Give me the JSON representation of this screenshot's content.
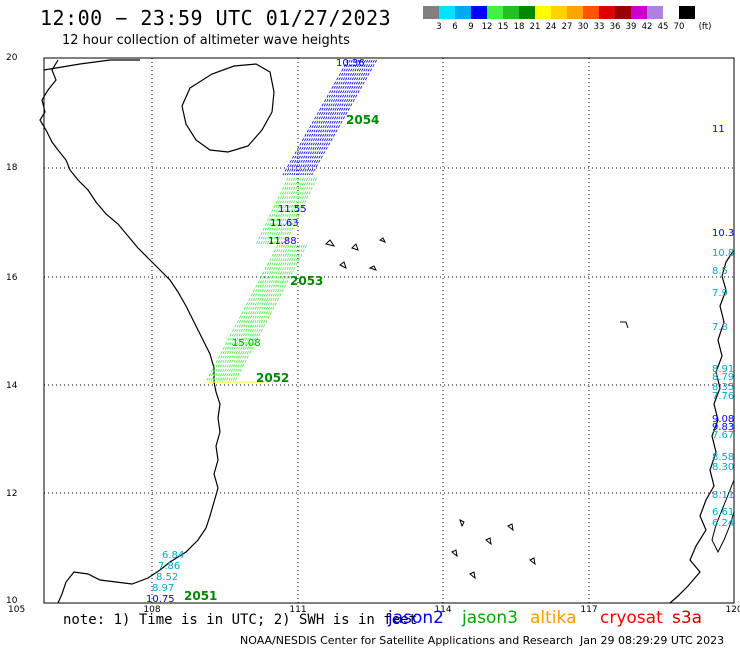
{
  "title": "12:00 − 23:59 UTC 01/27/2023",
  "subtitle": "12 hour collection of altimeter wave heights",
  "colorbar": {
    "unit": "(ft)",
    "ticks": [
      "3",
      "6",
      "9",
      "12",
      "15",
      "18",
      "21",
      "24",
      "27",
      "30",
      "33",
      "36",
      "39",
      "42",
      "45",
      "70"
    ],
    "colors": [
      "#808080",
      "#00e5ff",
      "#00aaee",
      "#0000ff",
      "#44ee44",
      "#22c022",
      "#008800",
      "#ffff00",
      "#ffd200",
      "#ffa500",
      "#ff5500",
      "#e00000",
      "#990000",
      "#cc00cc",
      "#b080e0",
      "#ffffff",
      "#000000"
    ]
  },
  "map": {
    "x_ticks": [
      "105",
      "108",
      "111",
      "114",
      "117",
      "120"
    ],
    "y_ticks": [
      "20",
      "18",
      "16",
      "14",
      "12",
      "10"
    ],
    "lon_range": [
      105,
      120
    ],
    "lat_range": [
      10,
      20
    ],
    "passes": [
      {
        "time": "2054",
        "satellite": "jason3"
      },
      {
        "time": "2053",
        "satellite": "jason3"
      },
      {
        "time": "2052",
        "satellite": "jason3"
      },
      {
        "time": "2051",
        "satellite": "jason3"
      }
    ],
    "track_labels_left": [
      "10.36",
      "11.55",
      "11.63",
      "11.88",
      "15.08",
      "6.84",
      "7.86",
      "8.52",
      "8.97",
      "10.75"
    ],
    "track_labels_right": [
      "11",
      "10.3",
      "10.8",
      "8.5",
      "7.9",
      "7.8",
      "8.91",
      "8.79",
      "8.35",
      "7.76",
      "9.08",
      "9.83",
      "7.67",
      "8.58",
      "8.30",
      "8.11",
      "6.61",
      "6.24"
    ]
  },
  "note": "note:  1) Time is in UTC; 2) SWH is in feet",
  "satellites": [
    {
      "name": "jason2",
      "color": "#0000ff"
    },
    {
      "name": "jason3",
      "color": "#00aa00"
    },
    {
      "name": "altika",
      "color": "#ff9900"
    },
    {
      "name": "cryosat",
      "color": "#ff0000"
    },
    {
      "name": "s3a",
      "color": "#cc0000"
    }
  ],
  "credit": "NOAA/NESDIS Center for Satellite Applications and Research",
  "timestamp": "Jan 29 08:29:29 UTC 2023"
}
